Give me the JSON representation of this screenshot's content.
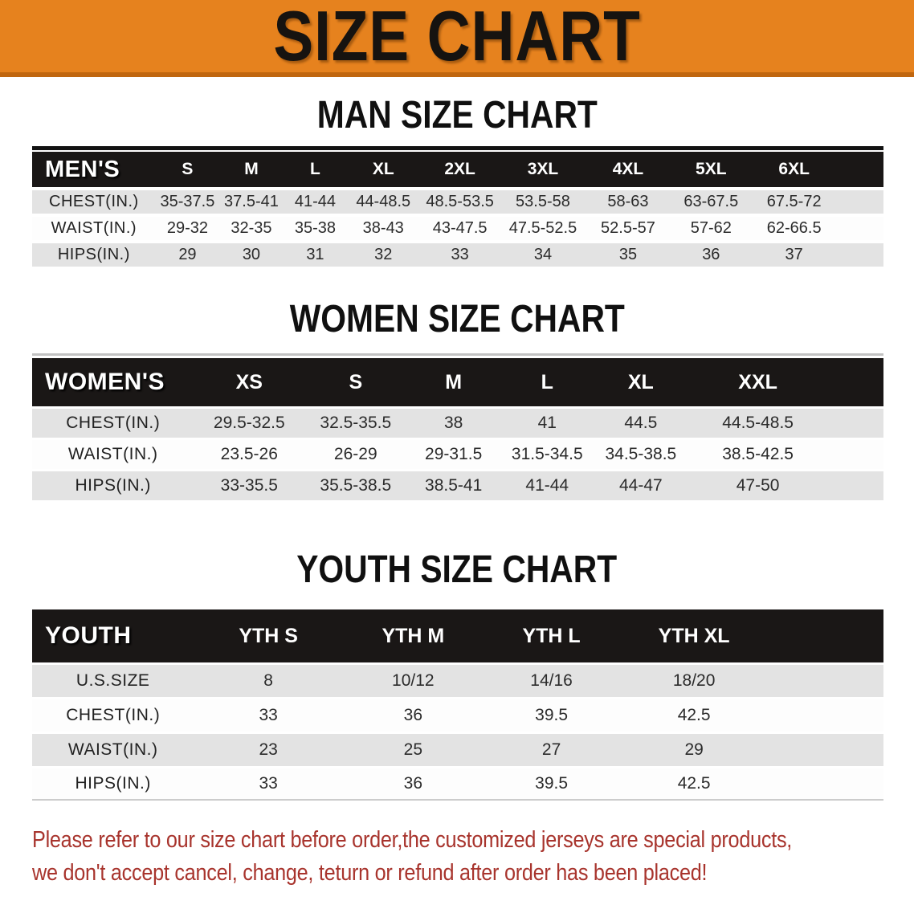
{
  "banner": {
    "title": "SIZE CHART"
  },
  "colors": {
    "banner_orange": "#E6821E",
    "banner_edge": "#C0660F",
    "header_black": "#1A1716",
    "row_gray": "#E3E3E3",
    "note_red": "#A8342D"
  },
  "sections": [
    {
      "heading": "MAN SIZE CHART",
      "table": {
        "label": "MEN'S",
        "columns": [
          "S",
          "M",
          "L",
          "XL",
          "2XL",
          "3XL",
          "4XL",
          "5XL",
          "6XL"
        ],
        "rows": [
          {
            "label": "CHEST(IN.)",
            "values": [
              "35-37.5",
              "37.5-41",
              "41-44",
              "44-48.5",
              "48.5-53.5",
              "53.5-58",
              "58-63",
              "63-67.5",
              "67.5-72"
            ]
          },
          {
            "label": "WAIST(IN.)",
            "values": [
              "29-32",
              "32-35",
              "35-38",
              "38-43",
              "43-47.5",
              "47.5-52.5",
              "52.5-57",
              "57-62",
              "62-66.5"
            ]
          },
          {
            "label": "HIPS(IN.)",
            "values": [
              "29",
              "30",
              "31",
              "32",
              "33",
              "34",
              "35",
              "36",
              "37"
            ]
          }
        ]
      }
    },
    {
      "heading": "WOMEN SIZE CHART",
      "table": {
        "label": "WOMEN'S",
        "columns": [
          "XS",
          "S",
          "M",
          "L",
          "XL",
          "XXL"
        ],
        "rows": [
          {
            "label": "CHEST(IN.)",
            "values": [
              "29.5-32.5",
              "32.5-35.5",
              "38",
              "41",
              "44.5",
              "44.5-48.5"
            ]
          },
          {
            "label": "WAIST(IN.)",
            "values": [
              "23.5-26",
              "26-29",
              "29-31.5",
              "31.5-34.5",
              "34.5-38.5",
              "38.5-42.5"
            ]
          },
          {
            "label": "HIPS(IN.)",
            "values": [
              "33-35.5",
              "35.5-38.5",
              "38.5-41",
              "41-44",
              "44-47",
              "47-50"
            ]
          }
        ]
      }
    },
    {
      "heading": "YOUTH SIZE CHART",
      "table": {
        "label": "YOUTH",
        "columns": [
          "YTH S",
          "YTH M",
          "YTH L",
          "YTH XL"
        ],
        "rows": [
          {
            "label": "U.S.SIZE",
            "values": [
              "8",
              "10/12",
              "14/16",
              "18/20"
            ]
          },
          {
            "label": "CHEST(IN.)",
            "values": [
              "33",
              "36",
              "39.5",
              "42.5"
            ]
          },
          {
            "label": "WAIST(IN.)",
            "values": [
              "23",
              "25",
              "27",
              "29"
            ]
          },
          {
            "label": "HIPS(IN.)",
            "values": [
              "33",
              "36",
              "39.5",
              "42.5"
            ]
          }
        ]
      }
    }
  ],
  "footer": {
    "line1": "Please refer to our size chart before order,the customized jerseys are special products,",
    "line2": "we don't accept cancel, change, teturn or refund after order has been placed!"
  }
}
